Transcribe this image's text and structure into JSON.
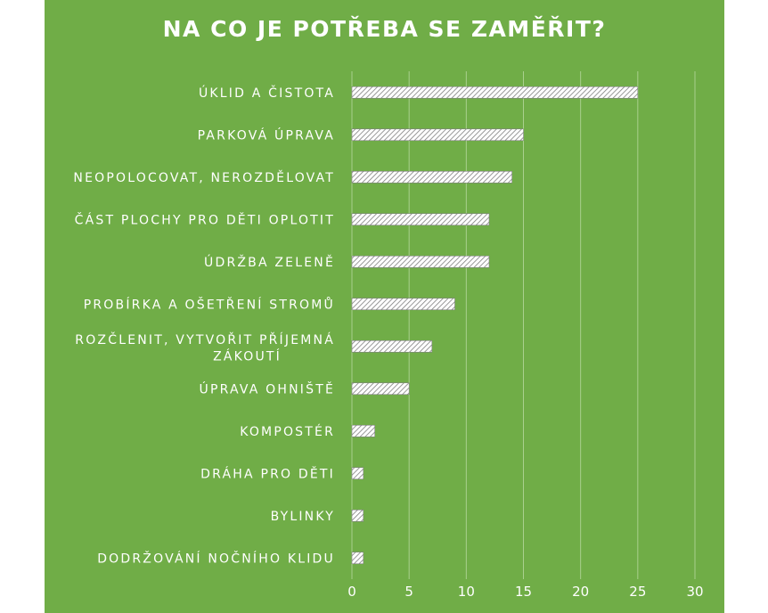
{
  "colors": {
    "background": "#70ad47",
    "bar_fill": "#ffffff",
    "bar_hatch": "#7f7f7f",
    "gridline": "#a9d08e",
    "text": "#ffffff"
  },
  "chart_data": {
    "type": "bar",
    "orientation": "horizontal",
    "title": "NA CO JE POTŘEBA SE ZAMĚŘIT?",
    "categories": [
      "ÚKLID A ČISTOTA",
      "PARKOVÁ ÚPRAVA",
      "NEOPOLOCOVAT, NEROZDĚLOVAT",
      "ČÁST PLOCHY PRO DĚTI OPLOTIT",
      "ÚDRŽBA ZELENĚ",
      "PROBÍRKA A OŠETŘENÍ STROMŮ",
      "ROZČLENIT, VYTVOŘIT PŘÍJEMNÁ ZÁKOUTÍ",
      "ÚPRAVA OHNIŠTĚ",
      "KOMPOSTÉR",
      "DRÁHA PRO DĚTI",
      "BYLINKY",
      "DODRŽOVÁNÍ NOČNÍHO KLIDU"
    ],
    "values": [
      25,
      15,
      14,
      12,
      12,
      9,
      7,
      5,
      2,
      1,
      1,
      1
    ],
    "xlim": [
      0,
      30
    ],
    "xticks": [
      0,
      5,
      10,
      15,
      20,
      25,
      30
    ],
    "grid": true,
    "legend": "none"
  }
}
